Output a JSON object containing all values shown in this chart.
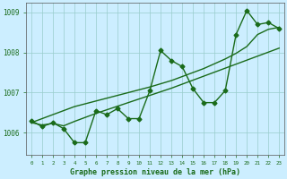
{
  "background_color": "#cceeff",
  "grid_color": "#99cccc",
  "line_color": "#1a6b1a",
  "title": "Graphe pression niveau de la mer (hPa)",
  "x_values": [
    0,
    1,
    2,
    3,
    4,
    5,
    6,
    7,
    8,
    9,
    10,
    11,
    12,
    13,
    14,
    15,
    16,
    17,
    18,
    19,
    20,
    21,
    22,
    23
  ],
  "y_main": [
    1006.3,
    1006.15,
    1006.25,
    1006.1,
    1005.75,
    1005.75,
    1006.55,
    1006.45,
    1006.6,
    1006.35,
    1006.35,
    1007.05,
    1008.05,
    1007.8,
    1007.65,
    1007.1,
    1006.75,
    1006.75,
    1007.05,
    1008.45,
    1009.05,
    1008.7,
    1008.75,
    1008.6
  ],
  "y_trend1": [
    1006.25,
    1006.35,
    1006.45,
    1006.55,
    1006.65,
    1006.72,
    1006.79,
    1006.86,
    1006.93,
    1007.0,
    1007.07,
    1007.14,
    1007.22,
    1007.3,
    1007.4,
    1007.5,
    1007.6,
    1007.72,
    1007.84,
    1007.98,
    1008.15,
    1008.45,
    1008.58,
    1008.63
  ],
  "y_trend2": [
    1006.25,
    1006.19,
    1006.23,
    1006.17,
    1006.28,
    1006.38,
    1006.48,
    1006.57,
    1006.66,
    1006.75,
    1006.84,
    1006.93,
    1007.02,
    1007.11,
    1007.21,
    1007.31,
    1007.41,
    1007.51,
    1007.61,
    1007.71,
    1007.81,
    1007.91,
    1008.01,
    1008.11
  ],
  "ylim_min": 1005.45,
  "ylim_max": 1009.25,
  "yticks": [
    1006,
    1007,
    1008,
    1009
  ],
  "xlabel_color": "#1a6b1a",
  "tick_label_color": "#1a6b1a"
}
